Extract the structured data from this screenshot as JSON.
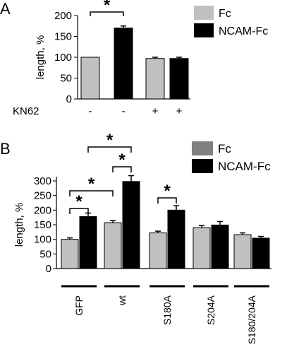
{
  "chart_data": [
    {
      "panel_label": "A",
      "type": "bar",
      "ylabel": "length, %",
      "ylim": [
        0,
        200
      ],
      "yticks": [
        0,
        50,
        100,
        150,
        200
      ],
      "kn62_label": "KN62",
      "kn62_marks": [
        "-",
        "-",
        "+",
        "+"
      ],
      "bars": [
        {
          "series": "Fc",
          "value": 100,
          "error": 0
        },
        {
          "series": "NCAM-Fc",
          "value": 170,
          "error": 5
        },
        {
          "series": "Fc",
          "value": 97,
          "error": 3
        },
        {
          "series": "NCAM-Fc",
          "value": 97,
          "error": 3
        }
      ],
      "significance": [
        {
          "from": 0,
          "to": 1,
          "symbol": "*"
        }
      ],
      "legend": [
        {
          "name": "Fc",
          "color": "#c0c0c0"
        },
        {
          "name": "NCAM-Fc",
          "color": "#000000"
        }
      ],
      "legend_position": "top-right"
    },
    {
      "panel_label": "B",
      "type": "bar",
      "ylabel": "length, %",
      "ylim": [
        0,
        300
      ],
      "yticks": [
        0,
        50,
        100,
        150,
        200,
        250,
        300
      ],
      "categories": [
        "GFP",
        "wt",
        "S180A",
        "S204A",
        "S180/204A"
      ],
      "series": [
        {
          "name": "Fc",
          "values": [
            100,
            157,
            122,
            140,
            116
          ],
          "errors": [
            5,
            7,
            6,
            7,
            6
          ]
        },
        {
          "name": "NCAM-Fc",
          "values": [
            178,
            298,
            200,
            149,
            104
          ],
          "errors": [
            12,
            20,
            15,
            12,
            6
          ]
        }
      ],
      "significance": [
        {
          "from": 0,
          "to": 1,
          "symbol": "*"
        },
        {
          "from": 0,
          "to": 2,
          "symbol": "*"
        },
        {
          "from": 1,
          "to": 3,
          "symbol": "*"
        },
        {
          "from": 2,
          "to": 3,
          "symbol": "*"
        },
        {
          "from": 4,
          "to": 5,
          "symbol": "*"
        }
      ],
      "legend": [
        {
          "name": "Fc",
          "color": "#808080"
        },
        {
          "name": "NCAM-Fc",
          "color": "#000000"
        }
      ],
      "legend_position": "top-right"
    }
  ],
  "colors": {
    "fc_bar": "#c0c0c0",
    "ncam_bar": "#000000",
    "axis": "#000000"
  }
}
